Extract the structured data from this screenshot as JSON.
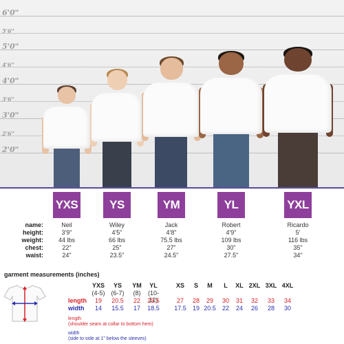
{
  "height_scale": [
    "6'0\"",
    "5'6\"",
    "5'0\"",
    "4'6\"",
    "4'0\"",
    "3'6\"",
    "3'0\"",
    "2'6\"",
    "2'0\""
  ],
  "kids": [
    {
      "size": "YXS",
      "name": "Neil",
      "height": "3'9\"",
      "weight": "44 lbs",
      "chest": "22\"",
      "waist": "24\""
    },
    {
      "size": "YS",
      "name": "Wiley",
      "height": "4'5\"",
      "weight": "66 lbs",
      "chest": "25\"",
      "waist": "23.5\""
    },
    {
      "size": "YM",
      "name": "Jack",
      "height": "4'8\"",
      "weight": "75.5 lbs",
      "chest": "27\"",
      "waist": "24.5\""
    },
    {
      "size": "YL",
      "name": "Robert",
      "height": "4'9\"",
      "weight": "109 lbs",
      "chest": "30\"",
      "waist": "27.5\""
    },
    {
      "size": "YXL",
      "name": "Ricardo",
      "height": "5'",
      "weight": "116 lbs",
      "chest": "35\"",
      "waist": "34\""
    }
  ],
  "stat_labels": {
    "name": "name:",
    "height": "height:",
    "weight": "weight:",
    "chest": "chest:",
    "waist": "waist:"
  },
  "garment": {
    "title": "garment measurements (inches)",
    "sizes": [
      "YXS",
      "YS",
      "YM",
      "YL",
      "XS",
      "S",
      "M",
      "L",
      "XL",
      "2XL",
      "3XL",
      "4XL"
    ],
    "ages": [
      "(4-5)",
      "(6-7)",
      "(8)",
      "(10-12)"
    ],
    "length_label": "length",
    "width_label": "width",
    "length": [
      "19",
      "20.5",
      "22",
      "23.5",
      "27",
      "28",
      "29",
      "30",
      "31",
      "32",
      "33",
      "34"
    ],
    "width": [
      "14",
      "15.5",
      "17",
      "18.5",
      "17.5",
      "19",
      "20.5",
      "22",
      "24",
      "26",
      "28",
      "30"
    ],
    "length_note_title": "length",
    "length_note": "(shoulder seam at collar to bottom hem)",
    "width_note_title": "width",
    "width_note": "(side to side at 1\" below the sleeves)"
  },
  "colors": {
    "badge": "#8e3f9b",
    "length": "#d8202a",
    "width": "#2a2fb0"
  }
}
